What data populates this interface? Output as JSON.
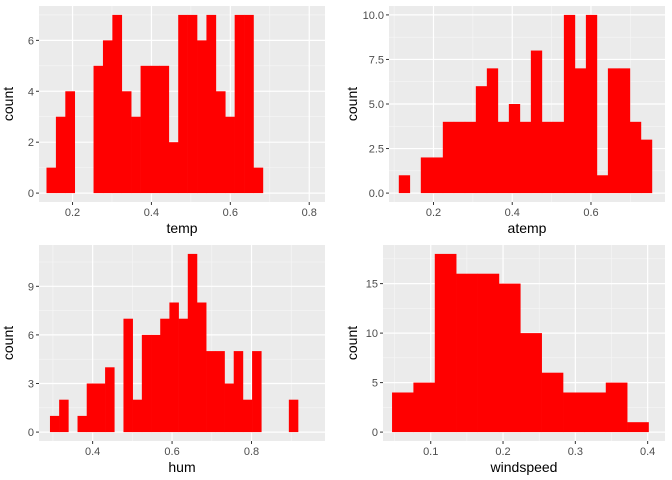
{
  "chart_data": [
    {
      "type": "bar",
      "subtype": "histogram",
      "xlabel": "temp",
      "ylabel": "count",
      "xlim": [
        0.115,
        0.84
      ],
      "ylim": [
        -0.35,
        7.35
      ],
      "xticks": [
        0.2,
        0.4,
        0.6,
        0.8
      ],
      "xtick_labels": [
        "0.2",
        "0.4",
        "0.6",
        "0.8"
      ],
      "yticks": [
        0,
        2,
        4,
        6
      ],
      "ytick_labels": [
        "0",
        "2",
        "4",
        "6"
      ],
      "bin_start": 0.134,
      "bin_width": 0.02385,
      "values": [
        1,
        3,
        4,
        0,
        0,
        5,
        6,
        7,
        4,
        3,
        5,
        5,
        5,
        2,
        7,
        7,
        6,
        7,
        4,
        3,
        7,
        7,
        1
      ],
      "grid": true,
      "color": "#ff0000",
      "panel_color": "#ebebeb"
    },
    {
      "type": "bar",
      "subtype": "histogram",
      "xlabel": "atemp",
      "ylabel": "count",
      "xlim": [
        0.087,
        0.788
      ],
      "ylim": [
        -0.5,
        10.5
      ],
      "xticks": [
        0.2,
        0.4,
        0.6
      ],
      "xtick_labels": [
        "0.2",
        "0.4",
        "0.6"
      ],
      "yticks": [
        0,
        2.5,
        5,
        7.5,
        10
      ],
      "ytick_labels": [
        "0.0",
        "2.5",
        "5.0",
        "7.5",
        "10.0"
      ],
      "bin_start": 0.1119,
      "bin_width": 0.02795,
      "values": [
        1,
        0,
        2,
        2,
        4,
        4,
        4,
        6,
        7,
        4,
        5,
        4,
        8,
        4,
        4,
        10,
        7,
        10,
        1,
        7,
        7,
        4,
        3
      ],
      "grid": true,
      "color": "#ff0000",
      "panel_color": "#ebebeb"
    },
    {
      "type": "bar",
      "subtype": "histogram",
      "xlabel": "hum",
      "ylabel": "count",
      "xlim": [
        0.265,
        0.985
      ],
      "ylim": [
        -0.55,
        11.55
      ],
      "xticks": [
        0.4,
        0.6,
        0.8
      ],
      "xtick_labels": [
        "0.4",
        "0.6",
        "0.8"
      ],
      "yticks": [
        0,
        3,
        6,
        9
      ],
      "ytick_labels": [
        "0",
        "3",
        "6",
        "9"
      ],
      "bin_start": 0.2926,
      "bin_width": 0.02313,
      "values": [
        1,
        2,
        0,
        1,
        3,
        3,
        4,
        0,
        7,
        2,
        6,
        6,
        7,
        8,
        7,
        11,
        8,
        5,
        5,
        3,
        5,
        2,
        5,
        0,
        0,
        0,
        2
      ],
      "grid": true,
      "color": "#ff0000",
      "panel_color": "#ebebeb"
    },
    {
      "type": "bar",
      "subtype": "histogram",
      "xlabel": "windspeed",
      "ylabel": "count",
      "xlim": [
        0.034,
        0.424
      ],
      "ylim": [
        -0.9,
        18.9
      ],
      "xticks": [
        0.1,
        0.2,
        0.3,
        0.4
      ],
      "xtick_labels": [
        "0.1",
        "0.2",
        "0.3",
        "0.4"
      ],
      "yticks": [
        0,
        5,
        10,
        15
      ],
      "ytick_labels": [
        "0",
        "5",
        "10",
        "15"
      ],
      "bin_start": 0.0465,
      "bin_width": 0.02956,
      "values": [
        4,
        5,
        18,
        16,
        16,
        15,
        10,
        6,
        4,
        4,
        5,
        1
      ],
      "grid": true,
      "color": "#ff0000",
      "panel_color": "#ebebeb"
    }
  ]
}
